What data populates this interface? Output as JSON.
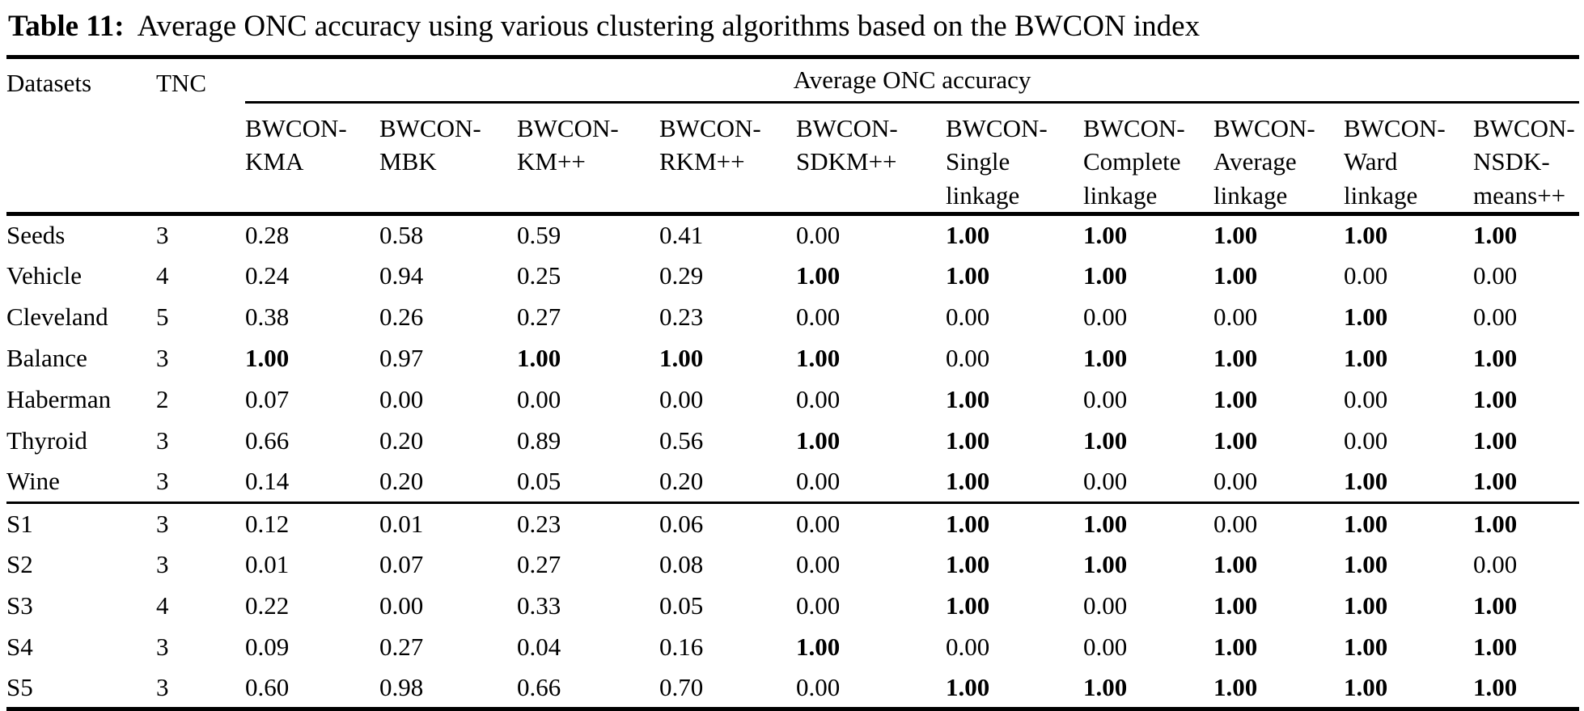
{
  "caption": {
    "label": "Table 11:",
    "text": "Average ONC accuracy using various clustering algorithms based on the BWCON index"
  },
  "table": {
    "corner_headers": {
      "datasets": "Datasets",
      "tnc": "TNC"
    },
    "span_header": "Average ONC accuracy",
    "bold_value": "1.00",
    "method_columns": [
      {
        "id": "bwcon-kma",
        "label": "BWCON-KMA",
        "lines": [
          "BWCON-",
          "KMA"
        ]
      },
      {
        "id": "bwcon-mbk",
        "label": "BWCON-MBK",
        "lines": [
          "BWCON-",
          "MBK"
        ]
      },
      {
        "id": "bwcon-kmpp",
        "label": "BWCON-KM++",
        "lines": [
          "BWCON-",
          "KM++"
        ]
      },
      {
        "id": "bwcon-rkmpp",
        "label": "BWCON-RKM++",
        "lines": [
          "BWCON-",
          "RKM++"
        ]
      },
      {
        "id": "bwcon-sdkmpp",
        "label": "BWCON-SDKM++",
        "lines": [
          "BWCON-",
          "SDKM++"
        ]
      },
      {
        "id": "bwcon-single-linkage",
        "label": "BWCON-Single linkage",
        "lines": [
          "BWCON-",
          "Single",
          "linkage"
        ]
      },
      {
        "id": "bwcon-complete-linkage",
        "label": "BWCON-Complete linkage",
        "lines": [
          "BWCON-",
          "Complete",
          "linkage"
        ]
      },
      {
        "id": "bwcon-average-linkage",
        "label": "BWCON-Average linkage",
        "lines": [
          "BWCON-",
          "Average",
          "linkage"
        ]
      },
      {
        "id": "bwcon-ward-linkage",
        "label": "BWCON-Ward linkage",
        "lines": [
          "BWCON-",
          "Ward",
          "linkage"
        ]
      },
      {
        "id": "bwcon-nsdk-meanspp",
        "label": "BWCON-NSDK-means++",
        "lines": [
          "BWCON-",
          "NSDK-",
          "means++"
        ]
      }
    ],
    "groups": [
      {
        "id": "real-datasets",
        "rows": [
          {
            "dataset": "Seeds",
            "tnc": "3",
            "values": [
              "0.28",
              "0.58",
              "0.59",
              "0.41",
              "0.00",
              "1.00",
              "1.00",
              "1.00",
              "1.00",
              "1.00"
            ]
          },
          {
            "dataset": "Vehicle",
            "tnc": "4",
            "values": [
              "0.24",
              "0.94",
              "0.25",
              "0.29",
              "1.00",
              "1.00",
              "1.00",
              "1.00",
              "0.00",
              "0.00"
            ]
          },
          {
            "dataset": "Cleveland",
            "tnc": "5",
            "values": [
              "0.38",
              "0.26",
              "0.27",
              "0.23",
              "0.00",
              "0.00",
              "0.00",
              "0.00",
              "1.00",
              "0.00"
            ]
          },
          {
            "dataset": "Balance",
            "tnc": "3",
            "values": [
              "1.00",
              "0.97",
              "1.00",
              "1.00",
              "1.00",
              "0.00",
              "1.00",
              "1.00",
              "1.00",
              "1.00"
            ]
          },
          {
            "dataset": "Haberman",
            "tnc": "2",
            "values": [
              "0.07",
              "0.00",
              "0.00",
              "0.00",
              "0.00",
              "1.00",
              "0.00",
              "1.00",
              "0.00",
              "1.00"
            ]
          },
          {
            "dataset": "Thyroid",
            "tnc": "3",
            "values": [
              "0.66",
              "0.20",
              "0.89",
              "0.56",
              "1.00",
              "1.00",
              "1.00",
              "1.00",
              "0.00",
              "1.00"
            ]
          },
          {
            "dataset": "Wine",
            "tnc": "3",
            "values": [
              "0.14",
              "0.20",
              "0.05",
              "0.20",
              "0.00",
              "1.00",
              "0.00",
              "0.00",
              "1.00",
              "1.00"
            ]
          }
        ]
      },
      {
        "id": "synthetic-datasets",
        "rows": [
          {
            "dataset": "S1",
            "tnc": "3",
            "values": [
              "0.12",
              "0.01",
              "0.23",
              "0.06",
              "0.00",
              "1.00",
              "1.00",
              "0.00",
              "1.00",
              "1.00"
            ]
          },
          {
            "dataset": "S2",
            "tnc": "3",
            "values": [
              "0.01",
              "0.07",
              "0.27",
              "0.08",
              "0.00",
              "1.00",
              "1.00",
              "1.00",
              "1.00",
              "0.00"
            ]
          },
          {
            "dataset": "S3",
            "tnc": "4",
            "values": [
              "0.22",
              "0.00",
              "0.33",
              "0.05",
              "0.00",
              "1.00",
              "0.00",
              "1.00",
              "1.00",
              "1.00"
            ]
          },
          {
            "dataset": "S4",
            "tnc": "3",
            "values": [
              "0.09",
              "0.27",
              "0.04",
              "0.16",
              "1.00",
              "0.00",
              "0.00",
              "1.00",
              "1.00",
              "1.00"
            ]
          },
          {
            "dataset": "S5",
            "tnc": "3",
            "values": [
              "0.60",
              "0.98",
              "0.66",
              "0.70",
              "0.00",
              "1.00",
              "1.00",
              "1.00",
              "1.00",
              "1.00"
            ]
          }
        ]
      }
    ]
  }
}
